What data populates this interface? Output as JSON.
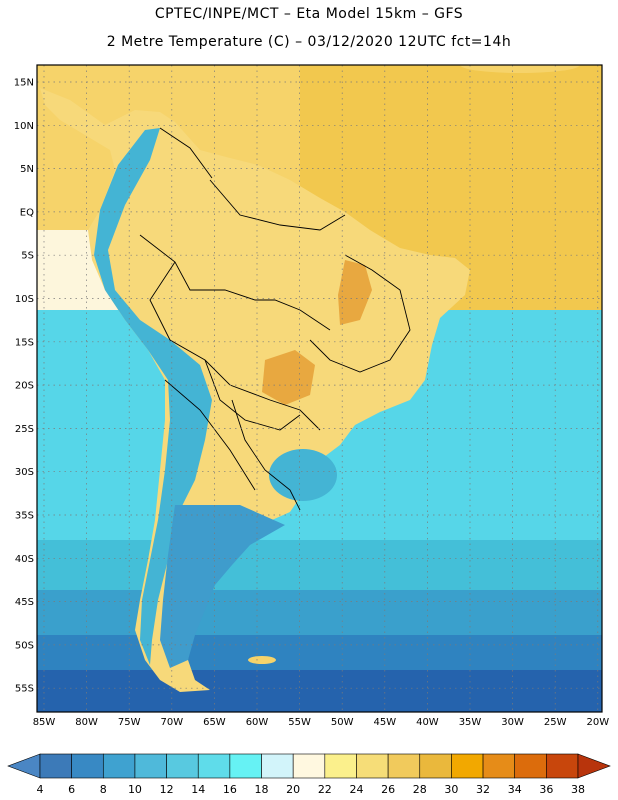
{
  "header": {
    "line1": "CPTEC/INPE/MCT –  Eta Model 15km – GFS",
    "line2": "2 Metre Temperature (C) – 03/12/2020 12UTC fct=14h"
  },
  "map": {
    "lat_labels": [
      "15N",
      "10N",
      "5N",
      "EQ",
      "5S",
      "10S",
      "15S",
      "20S",
      "25S",
      "30S",
      "35S",
      "40S",
      "45S",
      "50S",
      "55S"
    ],
    "lon_labels": [
      "85W",
      "80W",
      "75W",
      "70W",
      "65W",
      "60W",
      "55W",
      "50W",
      "45W",
      "40W",
      "35W",
      "30W",
      "25W",
      "20W"
    ],
    "colors": {
      "ocean_warm": "#f6d36a",
      "ocean_warm2": "#f2c84e",
      "ocean_pale": "#fbf0a0",
      "ocean_cream": "#fdf6dc",
      "ocean_cool1": "#56d6e8",
      "ocean_cool2": "#44bfd8",
      "ocean_cool3": "#3aa0cc",
      "ocean_cool4": "#2f83c0",
      "ocean_cold": "#2563ad",
      "land_main": "#f7d97a",
      "land_hot": "#e8a840",
      "andes_cold": "#44b4d4",
      "patagonia": "#3f9ccc",
      "border": "#000000"
    }
  },
  "legend": {
    "values": [
      "4",
      "6",
      "8",
      "10",
      "12",
      "14",
      "16",
      "18",
      "20",
      "22",
      "24",
      "26",
      "28",
      "30",
      "32",
      "34",
      "36",
      "38"
    ],
    "colors": [
      "#4a86c4",
      "#3c7ab8",
      "#3889c4",
      "#3fa2d0",
      "#4fb9da",
      "#58c9e0",
      "#5fdcea",
      "#66f2f4",
      "#d2f4fa",
      "#fff8e0",
      "#fbf08c",
      "#f6dd78",
      "#f1ca5c",
      "#eab83c",
      "#f2a800",
      "#e68c18",
      "#dc6c0c",
      "#c8460c",
      "#b8340c"
    ]
  }
}
